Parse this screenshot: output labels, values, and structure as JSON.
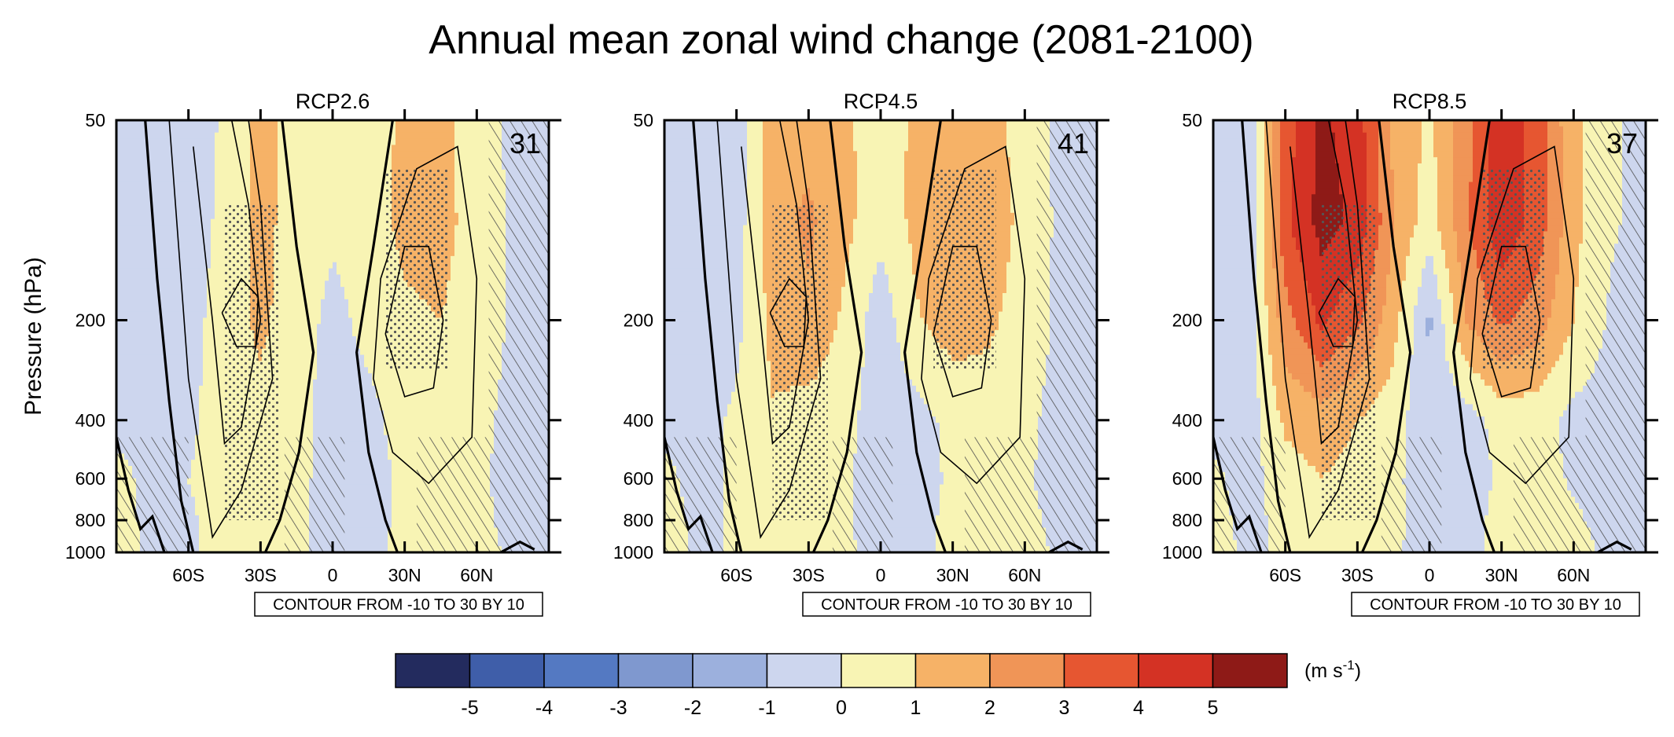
{
  "chart_data": {
    "type": "heatmap",
    "title": "Annual mean zonal wind change (2081-2100)",
    "ylabel": "Pressure (hPa)",
    "y_scale": "log",
    "ylim": [
      1000,
      50
    ],
    "y_ticks": [
      50,
      200,
      400,
      600,
      800,
      1000
    ],
    "y_tick_labels": [
      "50",
      "200",
      "400",
      "600",
      "800",
      "1000"
    ],
    "xlim": [
      -90,
      90
    ],
    "x_ticks": [
      -60,
      -30,
      0,
      30,
      60
    ],
    "x_tick_labels": [
      "60S",
      "30S",
      "0",
      "30N",
      "60N"
    ],
    "latitudes": [
      -90,
      -75,
      -60,
      -45,
      -30,
      -15,
      0,
      15,
      30,
      45,
      60,
      75,
      90
    ],
    "pressure_levels": [
      50,
      100,
      200,
      400,
      600,
      800,
      1000
    ],
    "palette": [
      "#232b5e",
      "#3f5ea9",
      "#5479c2",
      "#7f98cf",
      "#9cb0dd",
      "#cdd6ee",
      "#f8f4b4",
      "#f6b267",
      "#f09557",
      "#e65631",
      "#d43224",
      "#8e1a17"
    ],
    "colorbar": {
      "labels": [
        "-5",
        "-4",
        "-3",
        "-2",
        "-1",
        "0",
        "1",
        "2",
        "3",
        "4",
        "5"
      ],
      "bins": [
        -6,
        -5,
        -4,
        -3,
        -2,
        -1,
        0,
        1,
        2,
        3,
        4,
        5,
        6
      ],
      "units_main": "(m s",
      "units_sup": "-1",
      "units_end": ")"
    },
    "panels": [
      {
        "name": "RCP2.6",
        "model_count": "31",
        "contour_note": "CONTOUR FROM -10 TO 30 BY 10",
        "values": [
          [
            -0.5,
            -0.6,
            -0.8,
            0.2,
            1.4,
            0.5,
            0.2,
            0.5,
            1.2,
            1.3,
            0.4,
            -0.2,
            -0.4
          ],
          [
            -0.4,
            -0.5,
            -0.6,
            0.3,
            1.3,
            0.6,
            0.2,
            0.5,
            1.3,
            1.4,
            0.5,
            -0.1,
            -0.3
          ],
          [
            -0.3,
            -0.5,
            -0.4,
            0.5,
            1.2,
            0.5,
            -0.3,
            0.3,
            0.8,
            1.0,
            0.4,
            -0.1,
            -0.3
          ],
          [
            -0.2,
            -0.3,
            -0.2,
            0.5,
            0.7,
            0.3,
            -0.4,
            -0.3,
            0.4,
            0.6,
            0.2,
            -0.2,
            -0.3
          ],
          [
            0.2,
            -0.2,
            0.0,
            0.4,
            0.5,
            0.2,
            -0.3,
            -0.4,
            0.2,
            0.3,
            0.1,
            -0.2,
            -0.3
          ],
          [
            0.3,
            -0.2,
            -0.1,
            0.3,
            0.4,
            0.1,
            -0.2,
            -0.3,
            0.2,
            0.3,
            0.2,
            -0.2,
            -0.2
          ],
          [
            0.4,
            -0.2,
            -0.1,
            0.3,
            0.3,
            0.1,
            -0.2,
            -0.3,
            0.3,
            0.3,
            0.2,
            -0.1,
            -0.2
          ]
        ]
      },
      {
        "name": "RCP4.5",
        "model_count": "41",
        "contour_note": "CONTOUR FROM -10 TO 30 BY 10",
        "values": [
          [
            -0.5,
            -0.7,
            -0.6,
            1.5,
            1.6,
            1.2,
            0.5,
            1.2,
            1.5,
            1.4,
            0.5,
            -0.2,
            -0.4
          ],
          [
            -0.4,
            -0.6,
            -0.5,
            1.6,
            2.2,
            1.3,
            0.3,
            1.3,
            2.0,
            1.8,
            0.6,
            -0.2,
            -0.3
          ],
          [
            -0.3,
            -0.5,
            -0.3,
            1.3,
            1.8,
            0.8,
            -0.6,
            0.9,
            1.5,
            1.2,
            0.5,
            -0.2,
            -0.4
          ],
          [
            -0.2,
            -0.4,
            0.2,
            0.9,
            0.6,
            0.3,
            -0.5,
            -0.4,
            0.3,
            0.5,
            0.2,
            -0.3,
            -0.4
          ],
          [
            0.2,
            -0.3,
            0.2,
            0.7,
            0.4,
            0.1,
            -0.4,
            -0.5,
            0.2,
            0.3,
            0.1,
            -0.3,
            -0.3
          ],
          [
            0.3,
            -0.2,
            0.1,
            0.6,
            0.3,
            0.1,
            -0.3,
            -0.4,
            0.3,
            0.3,
            0.2,
            -0.2,
            -0.2
          ],
          [
            0.4,
            -0.2,
            0.1,
            0.5,
            0.3,
            0.1,
            -0.2,
            -0.3,
            0.3,
            0.3,
            0.2,
            -0.1,
            -0.2
          ]
        ]
      },
      {
        "name": "RCP8.5",
        "model_count": "37",
        "contour_note": "CONTOUR FROM -10 TO 30 BY 10",
        "values": [
          [
            -0.6,
            -0.8,
            3.5,
            5.2,
            4.5,
            1.8,
            0.8,
            2.5,
            5.0,
            3.5,
            1.2,
            0.2,
            -0.3
          ],
          [
            -0.5,
            -0.7,
            3.8,
            5.4,
            4.8,
            2.0,
            0.5,
            2.8,
            4.8,
            3.6,
            1.3,
            0.1,
            -0.2
          ],
          [
            -0.4,
            -0.6,
            2.6,
            4.2,
            3.2,
            1.4,
            -1.2,
            2.0,
            3.2,
            2.5,
            1.0,
            -0.1,
            -0.3
          ],
          [
            -0.3,
            -0.5,
            1.2,
            1.5,
            1.0,
            0.4,
            -0.7,
            -0.5,
            0.4,
            0.4,
            -0.3,
            -0.5,
            -0.4
          ],
          [
            0.2,
            -0.4,
            0.6,
            1.0,
            0.7,
            0.2,
            -0.5,
            -0.6,
            0.2,
            0.3,
            -0.1,
            -0.4,
            -0.3
          ],
          [
            0.3,
            -0.3,
            0.3,
            0.8,
            0.5,
            0.2,
            -0.4,
            -0.5,
            0.4,
            0.3,
            0.1,
            -0.2,
            -0.2
          ],
          [
            0.4,
            -0.2,
            0.2,
            0.6,
            0.4,
            0.1,
            -0.3,
            -0.4,
            0.4,
            0.3,
            0.2,
            -0.1,
            -0.2
          ]
        ]
      }
    ]
  }
}
